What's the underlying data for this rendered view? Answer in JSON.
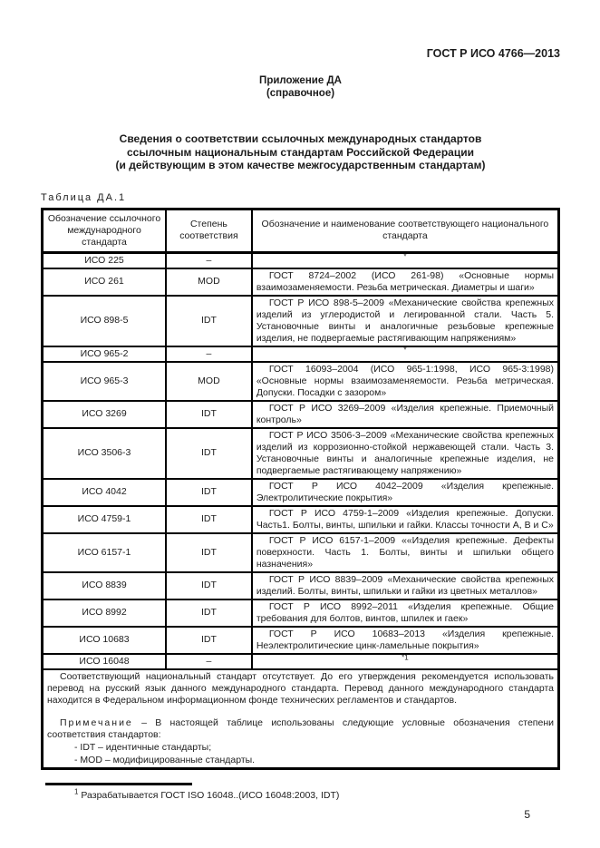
{
  "page": {
    "doc_number": "ГОСТ Р ИСО 4766—2013",
    "appendix_title": "Приложение ДА",
    "appendix_subtitle": "(справочное)",
    "title_line1": "Сведения о соответствии ссылочных международных стандартов",
    "title_line2": "ссылочным национальным стандартам Российской Федерации",
    "title_line3": "(и действующим в этом качестве межгосударственным стандартам)",
    "table_caption": "Таблица ДА.1",
    "page_number": "5"
  },
  "table": {
    "headers": [
      "Обозначение ссылочного международного стандарта",
      "Степень соответствия",
      "Обозначение и наименование соответствующего национального стандарта"
    ],
    "rows": [
      {
        "intl": "ИСО 225",
        "degree": "–",
        "national": "*"
      },
      {
        "intl": "ИСО 261",
        "degree": "MOD",
        "national": "ГОСТ 8724–2002 (ИСО 261-98) «Основные нормы взаимозаменяемости. Резьба метрическая. Диаметры и шаги»"
      },
      {
        "intl": "ИСО 898-5",
        "degree": "IDT",
        "national": "ГОСТ Р ИСО 898-5–2009 «Механические свойства крепежных изделий из углеродистой и легированной стали. Часть 5. Установочные винты и аналогичные резьбовые крепежные изделия, не подвергаемые растягивающим напряжениям»"
      },
      {
        "intl": "ИСО 965-2",
        "degree": "–",
        "national": "*"
      },
      {
        "intl": "ИСО 965-3",
        "degree": "MOD",
        "national": "ГОСТ 16093–2004 (ИСО 965-1:1998, ИСО 965-3:1998) «Основные нормы взаимозаменяемости. Резьба метрическая. Допуски. Посадки с зазором»"
      },
      {
        "intl": "ИСО 3269",
        "degree": "IDT",
        "national": "ГОСТ Р ИСО 3269–2009 «Изделия крепежные. Приемочный контроль»"
      },
      {
        "intl": "ИСО 3506-3",
        "degree": "IDT",
        "national": "ГОСТ Р ИСО 3506-3–2009 «Механические свойства крепежных изделий из коррозионно-стойкой нержавеющей стали. Часть 3. Установочные винты и аналогичные крепежные изделия, не подвергаемые растягивающему напряжению»"
      },
      {
        "intl": "ИСО 4042",
        "degree": "IDT",
        "national": "ГОСТ Р ИСО 4042–2009 «Изделия крепежные. Электролитические покрытия»"
      },
      {
        "intl": "ИСО 4759-1",
        "degree": "IDT",
        "national": "ГОСТ Р ИСО 4759-1–2009 «Изделия крепежные. Допуски. Часть1. Болты, винты, шпильки и гайки. Классы точности А, В и С»"
      },
      {
        "intl": "ИСО 6157-1",
        "degree": "IDT",
        "national": "ГОСТ Р ИСО 6157-1–2009 ««Изделия крепежные. Дефекты поверхности. Часть 1. Болты, винты и шпильки общего назначения»"
      },
      {
        "intl": "ИСО 8839",
        "degree": "IDT",
        "national": "ГОСТ Р ИСО 8839–2009 «Механические свойства крепежных изделий. Болты, винты, шпильки и гайки из цветных металлов»"
      },
      {
        "intl": "ИСО 8992",
        "degree": "IDT",
        "national": "ГОСТ Р ИСО 8992–2011 «Изделия крепежные. Общие требования для болтов, винтов, шпилек и гаек»"
      },
      {
        "intl": "ИСО 10683",
        "degree": "IDT",
        "national": "ГОСТ Р ИСО 10683–2013 «Изделия крепежные. Неэлектролитические цинк-ламельные покрытия»"
      },
      {
        "intl": "ИСО 16048",
        "degree": "–",
        "national": "*1"
      }
    ],
    "footer": {
      "paragraph": "Соответствующий национальный стандарт отсутствует. До его утверждения рекомендуется использовать перевод на русский язык данного международного стандарта. Перевод данного международного стандарта находится в Федеральном информационном фонде технических регламентов и стандартов.",
      "note_label": "Примечание",
      "note_text": "– В настоящей таблице использованы следующие условные обозначения степени соответствия стандартов:",
      "items": [
        "- IDT – идентичные стандарты;",
        "- MOD – модифицированные стандарты."
      ]
    }
  },
  "footnote": {
    "marker": "1",
    "text": "Разрабатывается ГОСТ ISO 16048..(ИСО 16048:2003, IDT)"
  }
}
